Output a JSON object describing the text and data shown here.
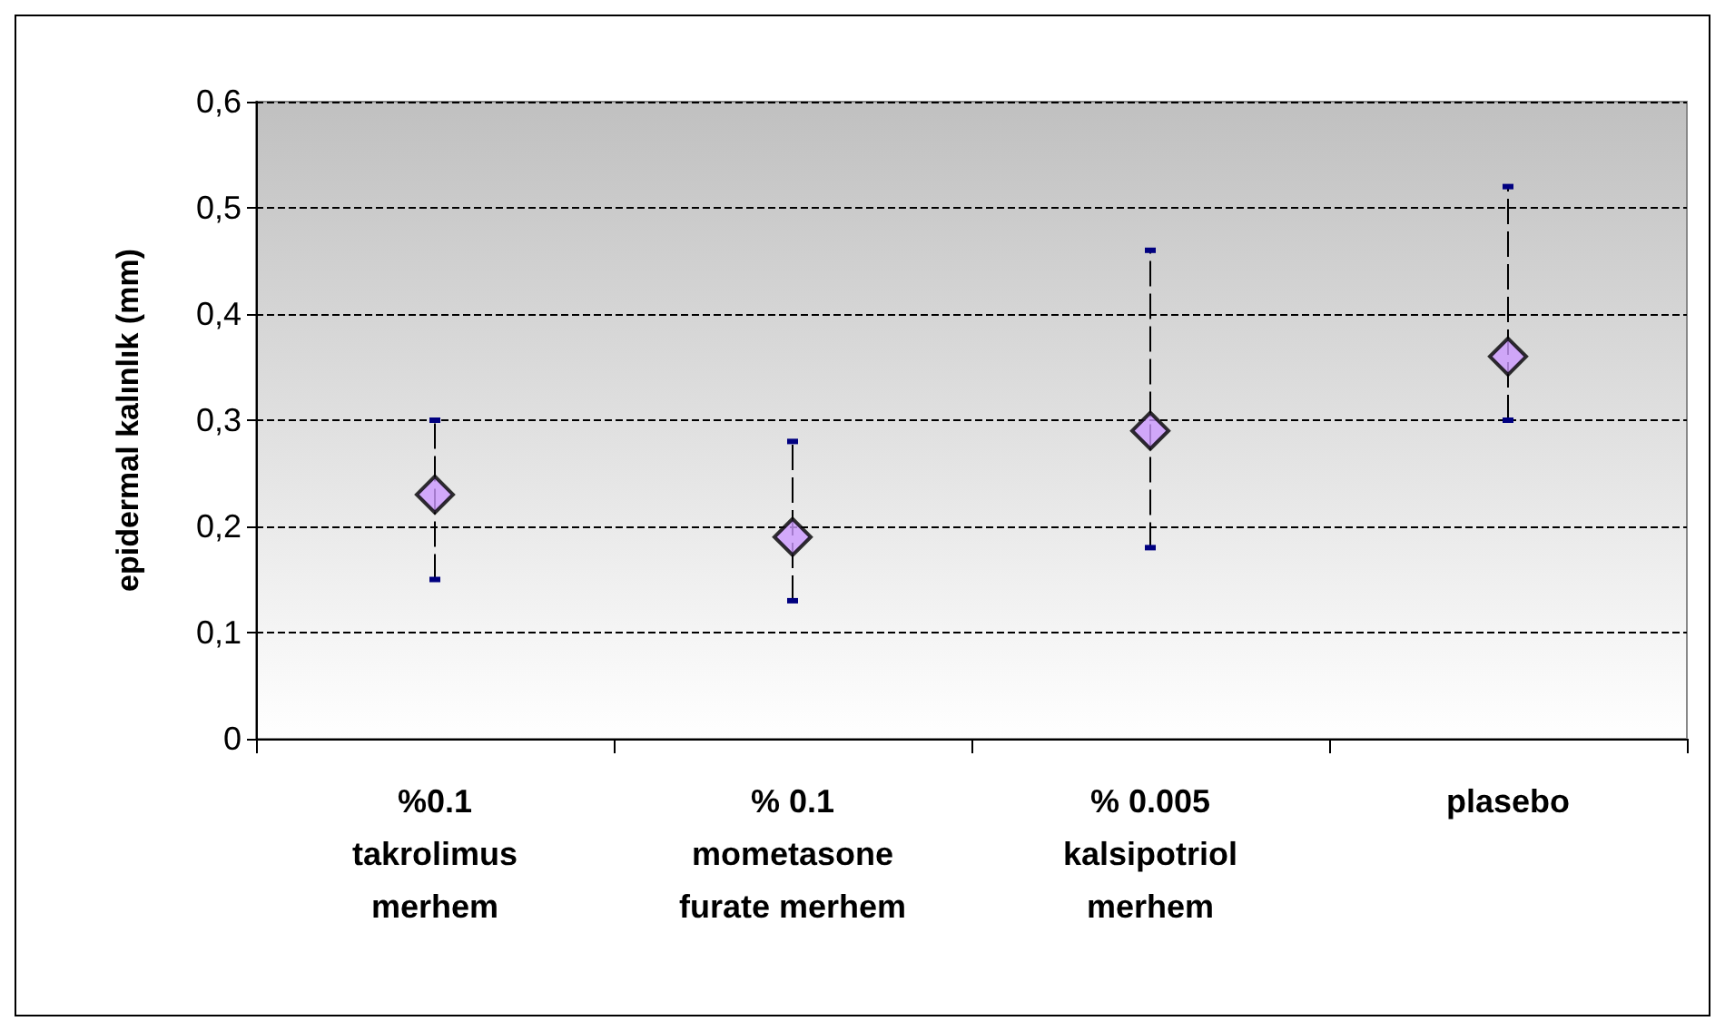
{
  "chart_data": {
    "type": "scatter",
    "ylabel": "epidermal kalınlık (mm)",
    "categories": [
      "%0.1\ntakrolimus\nmerhem",
      "% 0.1\nmometasone\nfurate merhem",
      "% 0.005\nkalsipotriol\nmerhem",
      "plasebo"
    ],
    "values": [
      0.23,
      0.19,
      0.29,
      0.36
    ],
    "errors": [
      [
        0.15,
        0.3
      ],
      [
        0.13,
        0.28
      ],
      [
        0.18,
        0.46
      ],
      [
        0.3,
        0.52
      ]
    ],
    "color": "#cc99ff",
    "marker": "diamond",
    "line_style": "dashed",
    "ylim": [
      0,
      0.6
    ],
    "yticks": [
      0,
      {
        "value": 0.1,
        "label": "0,1"
      },
      {
        "value": 0.2,
        "label": "0,2"
      },
      {
        "value": 0.3,
        "label": "0,3"
      },
      {
        "value": 0.4,
        "label": "0,4"
      },
      {
        "value": 0.5,
        "label": "0,5"
      },
      {
        "value": 0.6,
        "label": "0,6"
      }
    ],
    "grid": "y"
  }
}
